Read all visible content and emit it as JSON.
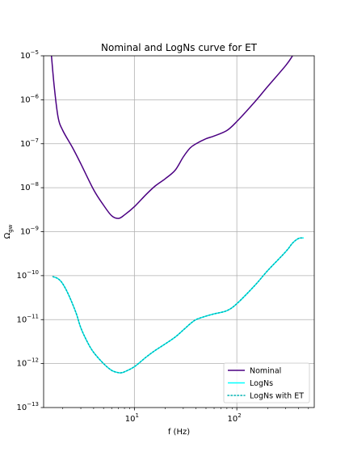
{
  "chart_data": {
    "type": "line",
    "title": "Nominal and LogNs curve for ET",
    "xlabel": "f (Hz)",
    "ylabel": "Ω_gw",
    "x_scale": "log",
    "y_scale": "log",
    "xlim": [
      1.3,
      570
    ],
    "ylim": [
      1e-13,
      1e-05
    ],
    "grid": true,
    "legend_position": "lower right",
    "x_ticks": [
      {
        "value": 10,
        "base": "10",
        "exp": "1"
      },
      {
        "value": 100,
        "base": "10",
        "exp": "2"
      }
    ],
    "y_ticks": [
      {
        "value": 1e-13,
        "base": "10",
        "exp": "−13"
      },
      {
        "value": 1e-12,
        "base": "10",
        "exp": "−12"
      },
      {
        "value": 1e-11,
        "base": "10",
        "exp": "−11"
      },
      {
        "value": 1e-10,
        "base": "10",
        "exp": "−10"
      },
      {
        "value": 1e-09,
        "base": "10",
        "exp": "−9"
      },
      {
        "value": 1e-08,
        "base": "10",
        "exp": "−8"
      },
      {
        "value": 1e-07,
        "base": "10",
        "exp": "−7"
      },
      {
        "value": 1e-06,
        "base": "10",
        "exp": "−6"
      },
      {
        "value": 1e-05,
        "base": "10",
        "exp": "−5"
      }
    ],
    "series": [
      {
        "name": "Nominal",
        "color": "#4b0082",
        "style": "solid",
        "x": [
          1.55,
          1.65,
          1.8,
          2.0,
          2.5,
          3.0,
          4.0,
          5.0,
          6.0,
          7.0,
          8.0,
          10.0,
          13.0,
          16.0,
          20.0,
          25.0,
          30.0,
          35.0,
          40.0,
          50.0,
          60.0,
          80.0,
          100.0,
          150.0,
          200.0,
          300.0,
          350.0
        ],
        "y": [
          1e-05,
          2e-06,
          4e-07,
          2e-07,
          8e-08,
          3.5e-08,
          9e-09,
          4e-09,
          2.3e-09,
          2e-09,
          2.4e-09,
          3.7e-09,
          7e-09,
          1.1e-08,
          1.6e-08,
          2.5e-08,
          5e-08,
          8e-08,
          1e-07,
          1.3e-07,
          1.5e-07,
          2e-07,
          3.2e-07,
          9e-07,
          2e-06,
          6e-06,
          1e-05
        ]
      },
      {
        "name": "LogNs",
        "color": "#00ffff",
        "style": "solid",
        "x": [
          1.6,
          1.8,
          2.0,
          2.3,
          2.7,
          3.0,
          3.5,
          4.0,
          5.0,
          6.0,
          7.0,
          7.5,
          8.0,
          10.0,
          13.0,
          16.0,
          20.0,
          25.0,
          30.0,
          35.0,
          40.0,
          50.0,
          60.0,
          80.0,
          100.0,
          150.0,
          200.0,
          300.0,
          350.0,
          400.0,
          450.0
        ],
        "y": [
          9.5e-11,
          8.5e-11,
          6.5e-11,
          3.5e-11,
          1.4e-11,
          6.5e-12,
          3e-12,
          1.8e-12,
          1e-12,
          7e-13,
          6.2e-13,
          6.2e-13,
          6.5e-13,
          8.5e-13,
          1.4e-12,
          2e-12,
          2.8e-12,
          4e-12,
          5.8e-12,
          8e-12,
          1e-11,
          1.2e-11,
          1.35e-11,
          1.6e-11,
          2.3e-11,
          6e-11,
          1.3e-10,
          3.5e-10,
          5.5e-10,
          7e-10,
          7.2e-10
        ]
      },
      {
        "name": "LogNs with ET",
        "color": "#00b3b3",
        "style": "dotted",
        "x": [
          1.6,
          1.8,
          2.0,
          2.3,
          2.7,
          3.0,
          3.5,
          4.0,
          5.0,
          6.0,
          7.0,
          7.5,
          8.0,
          10.0,
          13.0,
          16.0,
          20.0,
          25.0,
          30.0,
          35.0,
          40.0,
          50.0,
          60.0,
          80.0,
          100.0,
          150.0,
          200.0,
          300.0,
          350.0,
          400.0,
          450.0
        ],
        "y": [
          9.5e-11,
          8.5e-11,
          6.5e-11,
          3.5e-11,
          1.4e-11,
          6.5e-12,
          3e-12,
          1.8e-12,
          1e-12,
          7e-13,
          6.2e-13,
          6.2e-13,
          6.5e-13,
          8.5e-13,
          1.4e-12,
          2e-12,
          2.8e-12,
          4e-12,
          5.8e-12,
          8e-12,
          1e-11,
          1.2e-11,
          1.35e-11,
          1.6e-11,
          2.3e-11,
          6e-11,
          1.3e-10,
          3.5e-10,
          5.5e-10,
          7e-10,
          7.2e-10
        ]
      }
    ]
  }
}
